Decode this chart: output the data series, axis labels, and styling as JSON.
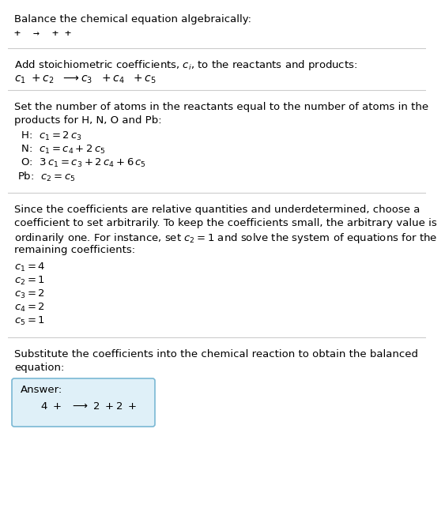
{
  "title": "Balance the chemical equation algebraically:",
  "line1": "+  →  + +",
  "section2_title": "Add stoichiometric coefficients, $c_i$, to the reactants and products:",
  "section2_eq_parts": [
    "$c_1$",
    " +",
    "$c_2$",
    "   →",
    "$c_3$",
    "  +",
    "$c_4$",
    "  +",
    "$c_5$"
  ],
  "section3_title1": "Set the number of atoms in the reactants equal to the number of atoms in the",
  "section3_title2": "products for H, N, O and Pb:",
  "section3_lines": [
    [
      " H:",
      " $c_1 = 2\\,c_3$"
    ],
    [
      " N:",
      " $c_1 = c_4 + 2\\,c_5$"
    ],
    [
      " O:",
      " $3\\,c_1 = c_3 + 2\\,c_4 + 6\\,c_5$"
    ],
    [
      "Pb:",
      " $c_2 = c_5$"
    ]
  ],
  "section4_text1": "Since the coefficients are relative quantities and underdetermined, choose a",
  "section4_text2": "coefficient to set arbitrarily. To keep the coefficients small, the arbitrary value is",
  "section4_text3": "ordinarily one. For instance, set $c_2 = 1$ and solve the system of equations for the",
  "section4_text4": "remaining coefficients:",
  "section4_lines": [
    "$c_1 = 4$",
    "$c_2 = 1$",
    "$c_3 = 2$",
    "$c_4 = 2$",
    "$c_5 = 1$"
  ],
  "section5_title1": "Substitute the coefficients into the chemical reaction to obtain the balanced",
  "section5_title2": "equation:",
  "answer_label": "Answer:",
  "answer_eq": "      4 +    →  2 + 2 +",
  "bg_color": "#ffffff",
  "text_color": "#000000",
  "box_bg": "#dff0f8",
  "box_edge": "#7ab8d4",
  "sep_color": "#cccccc",
  "font_size": 9.5,
  "small_font": 9.0
}
